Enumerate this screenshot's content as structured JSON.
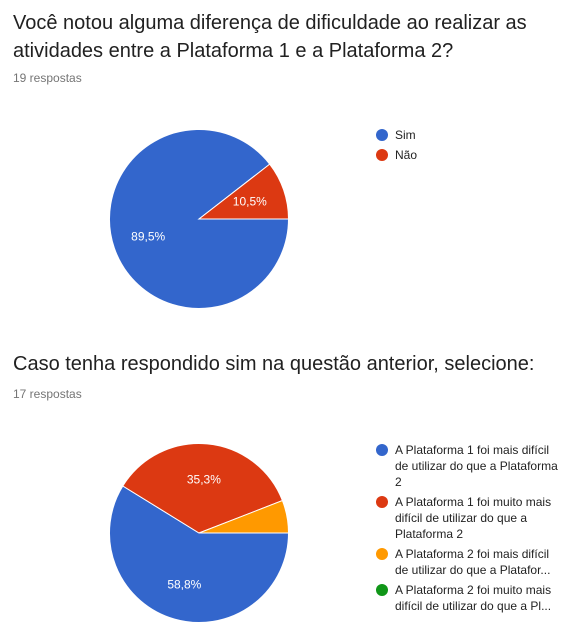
{
  "questions": [
    {
      "title": "Você notou alguma diferença de dificuldade ao realizar as atividades entre a Plataforma 1 e a Plataforma 2?",
      "responses": "19 respostas",
      "legend": [
        {
          "label": "Sim",
          "color": "#3366cc"
        },
        {
          "label": "Não",
          "color": "#dc3912"
        }
      ]
    },
    {
      "title": "Caso tenha respondido sim na questão anterior, selecione:",
      "responses": "17 respostas",
      "legend": [
        {
          "label": "A Plataforma 1 foi mais difícil de utilizar do que a Plataforma 2",
          "color": "#3366cc"
        },
        {
          "label": "A Plataforma 1 foi muito mais difícil de utilizar do que a Plataforma 2",
          "color": "#dc3912"
        },
        {
          "label": "A Plataforma 2 foi mais difícil de utilizar do que a Platafor...",
          "color": "#ff9900"
        },
        {
          "label": "A Plataforma 2 foi muito mais difícil de utilizar do que a Pl...",
          "color": "#109618"
        }
      ]
    }
  ],
  "chart_data": [
    {
      "type": "pie",
      "slices": [
        {
          "label": "Sim",
          "value": 89.5,
          "display": "89,5%",
          "color": "#3366cc"
        },
        {
          "label": "Não",
          "value": 10.5,
          "display": "10,5%",
          "color": "#dc3912"
        }
      ]
    },
    {
      "type": "pie",
      "slices": [
        {
          "label": "A Plataforma 1 foi mais difícil de utilizar do que a Plataforma 2",
          "value": 58.8,
          "display": "58,8%",
          "color": "#3366cc"
        },
        {
          "label": "A Plataforma 1 foi muito mais difícil de utilizar do que a Plataforma 2",
          "value": 35.3,
          "display": "35,3%",
          "color": "#dc3912"
        },
        {
          "label": "A Plataforma 2 foi mais difícil de utilizar do que a Platafor...",
          "value": 5.9,
          "display": "",
          "color": "#ff9900"
        },
        {
          "label": "A Plataforma 2 foi muito mais difícil de utilizar do que a Pl...",
          "value": 0,
          "display": "",
          "color": "#109618"
        }
      ]
    }
  ]
}
